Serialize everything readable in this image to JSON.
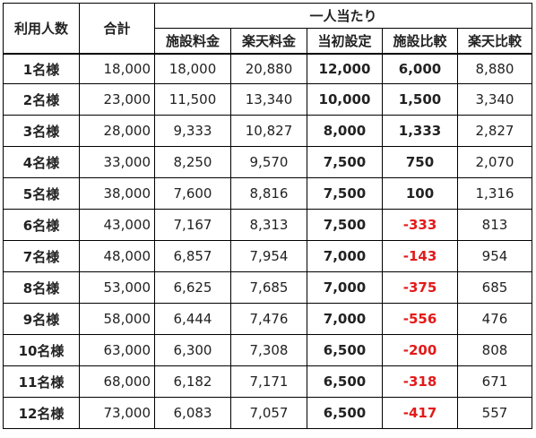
{
  "headers": {
    "persons": "利用人数",
    "total": "合計",
    "per_person": "一人当たり",
    "facility_fee": "施設料金",
    "rakuten_fee": "楽天料金",
    "initial_setting": "当初設定",
    "facility_compare": "施設比較",
    "rakuten_compare": "楽天比較"
  },
  "rows": [
    {
      "persons": "1名様",
      "total": "18,000",
      "facility_fee": "18,000",
      "rakuten_fee": "20,880",
      "initial_setting": "12,000",
      "facility_compare": "6,000",
      "rakuten_compare": "8,880",
      "negative": false
    },
    {
      "persons": "2名様",
      "total": "23,000",
      "facility_fee": "11,500",
      "rakuten_fee": "13,340",
      "initial_setting": "10,000",
      "facility_compare": "1,500",
      "rakuten_compare": "3,340",
      "negative": false
    },
    {
      "persons": "3名様",
      "total": "28,000",
      "facility_fee": "9,333",
      "rakuten_fee": "10,827",
      "initial_setting": "8,000",
      "facility_compare": "1,333",
      "rakuten_compare": "2,827",
      "negative": false
    },
    {
      "persons": "4名様",
      "total": "33,000",
      "facility_fee": "8,250",
      "rakuten_fee": "9,570",
      "initial_setting": "7,500",
      "facility_compare": "750",
      "rakuten_compare": "2,070",
      "negative": false
    },
    {
      "persons": "5名様",
      "total": "38,000",
      "facility_fee": "7,600",
      "rakuten_fee": "8,816",
      "initial_setting": "7,500",
      "facility_compare": "100",
      "rakuten_compare": "1,316",
      "negative": false
    },
    {
      "persons": "6名様",
      "total": "43,000",
      "facility_fee": "7,167",
      "rakuten_fee": "8,313",
      "initial_setting": "7,500",
      "facility_compare": "-333",
      "rakuten_compare": "813",
      "negative": true
    },
    {
      "persons": "7名様",
      "total": "48,000",
      "facility_fee": "6,857",
      "rakuten_fee": "7,954",
      "initial_setting": "7,000",
      "facility_compare": "-143",
      "rakuten_compare": "954",
      "negative": true
    },
    {
      "persons": "8名様",
      "total": "53,000",
      "facility_fee": "6,625",
      "rakuten_fee": "7,685",
      "initial_setting": "7,000",
      "facility_compare": "-375",
      "rakuten_compare": "685",
      "negative": true
    },
    {
      "persons": "9名様",
      "total": "58,000",
      "facility_fee": "6,444",
      "rakuten_fee": "7,476",
      "initial_setting": "7,000",
      "facility_compare": "-556",
      "rakuten_compare": "476",
      "negative": true
    },
    {
      "persons": "10名様",
      "total": "63,000",
      "facility_fee": "6,300",
      "rakuten_fee": "7,308",
      "initial_setting": "6,500",
      "facility_compare": "-200",
      "rakuten_compare": "808",
      "negative": true
    },
    {
      "persons": "11名様",
      "total": "68,000",
      "facility_fee": "6,182",
      "rakuten_fee": "7,171",
      "initial_setting": "6,500",
      "facility_compare": "-318",
      "rakuten_compare": "671",
      "negative": true
    },
    {
      "persons": "12名様",
      "total": "73,000",
      "facility_fee": "6,083",
      "rakuten_fee": "7,057",
      "initial_setting": "6,500",
      "facility_compare": "-417",
      "rakuten_compare": "557",
      "negative": true
    }
  ],
  "colors": {
    "negative": "#e31a1a",
    "border": "#000000",
    "text": "#222222"
  }
}
